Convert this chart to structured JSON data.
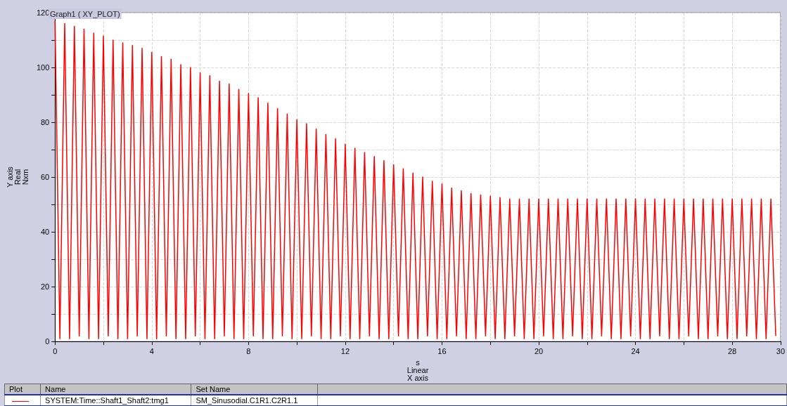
{
  "chart_data": {
    "type": "line",
    "title": "Graph1 ( XY_PLOT)",
    "xlabel": "s\nLinear\nX axis",
    "ylabel": "Y axis\nReal\nNxm",
    "annotations": [
      "Plot",
      "Name",
      "Set Name",
      "SM_Sinusodial.C1R1.C2R1.1"
    ],
    "xlim": [
      0,
      30
    ],
    "ylim": [
      0,
      120
    ],
    "xticks": [
      0,
      {
        "value": 2,
        "label": null
      },
      4,
      {
        "value": 6,
        "label": null
      },
      8,
      {
        "value": 10,
        "label": null
      },
      12,
      {
        "value": 14,
        "label": null
      },
      16,
      {
        "value": 18,
        "label": null
      },
      20,
      {
        "value": 22,
        "label": null
      },
      24,
      {
        "value": 26,
        "label": null
      },
      28,
      30
    ],
    "yticks": [
      0,
      {
        "value": 10,
        "label": null
      },
      20,
      {
        "value": 30,
        "label": null
      },
      40,
      {
        "value": 50,
        "label": null
      },
      60,
      {
        "value": 70,
        "label": null
      },
      80,
      {
        "value": 90,
        "label": null
      },
      100,
      {
        "value": 110,
        "label": null
      },
      120
    ],
    "grid": true,
    "legend": "bottom",
    "marker": "none",
    "line_style": "solid",
    "series": [
      {
        "name": "SYSTEM:Time::Shaft1_Shaft2:tmg1",
        "color": "#ff0000",
        "x": [
          0,
          0.2,
          0.4,
          0.6,
          0.8,
          1,
          1.2,
          1.4,
          1.6,
          1.8,
          2,
          2.2,
          2.4,
          2.6,
          2.8,
          3,
          3.2,
          3.4,
          3.6,
          3.8,
          4,
          4.2,
          4.4,
          4.6,
          4.8,
          5,
          5.2,
          5.4,
          5.6,
          5.8,
          6,
          6.2,
          6.4,
          6.6,
          6.8,
          7,
          7.2,
          7.4,
          7.6,
          7.8,
          8,
          8.2,
          8.4,
          8.6,
          8.8,
          9,
          9.2,
          9.4,
          9.6,
          9.8,
          10,
          10.2,
          10.4,
          10.6,
          10.8,
          11,
          11.2,
          11.4,
          11.6,
          11.8,
          12,
          12.2,
          12.4,
          12.6,
          12.8,
          13,
          13.2,
          13.4,
          13.6,
          13.8,
          14,
          14.2,
          14.4,
          14.6,
          14.8,
          15,
          15.2,
          15.4,
          15.6,
          15.8,
          16,
          16.2,
          16.4,
          16.6,
          16.8,
          17,
          17.2,
          17.4,
          17.6,
          17.8,
          18,
          18.2,
          18.4,
          18.6,
          18.8,
          19,
          19.2,
          19.4,
          19.6,
          19.8,
          20,
          20.2,
          20.4,
          20.6,
          20.8,
          21,
          21.2,
          21.4,
          21.6,
          21.8,
          22,
          22.2,
          22.4,
          22.6,
          22.8,
          23,
          23.2,
          23.4,
          23.6,
          23.8,
          24,
          24.2,
          24.4,
          24.6,
          24.8,
          25,
          25.2,
          25.4,
          25.6,
          25.8,
          26,
          26.2,
          26.4,
          26.6,
          26.8,
          27,
          27.2,
          27.4,
          27.6,
          27.8,
          28,
          28.2,
          28.4,
          28.6,
          28.8,
          29,
          29.2,
          29.4,
          29.6,
          29.8
        ],
        "values": [
          117,
          1,
          116,
          1,
          115,
          2,
          114,
          1,
          112.5,
          1,
          111.5,
          2,
          110,
          1,
          109,
          1,
          108,
          2,
          107,
          1,
          105.5,
          1,
          104,
          2,
          103,
          1,
          101,
          1,
          100,
          2,
          98,
          1,
          97,
          1,
          95,
          2,
          94,
          1,
          92,
          1,
          90.5,
          2,
          89,
          1,
          87,
          1,
          85,
          2,
          83,
          1,
          81,
          1,
          79.5,
          2,
          77.5,
          1,
          75.5,
          1,
          74,
          2,
          72,
          1,
          70.5,
          1,
          69,
          2,
          67.5,
          1,
          66,
          1,
          64.5,
          2,
          63,
          1,
          61.5,
          1,
          60,
          2,
          58.5,
          1,
          57.5,
          1,
          56,
          2,
          55,
          1,
          54,
          1,
          53.5,
          2,
          53,
          1,
          52.5,
          1,
          52,
          2,
          52,
          1,
          52,
          1,
          52,
          2,
          52,
          1,
          52,
          1,
          52,
          2,
          52,
          1,
          52,
          1,
          52,
          2,
          52,
          1,
          52,
          1,
          52,
          2,
          52,
          1,
          52,
          1,
          52,
          2,
          52,
          1,
          52,
          1,
          52,
          2,
          52,
          1,
          52,
          1,
          52,
          2,
          52,
          1,
          52,
          1,
          52,
          2,
          52,
          1,
          52,
          1,
          52,
          2
        ]
      }
    ]
  }
}
